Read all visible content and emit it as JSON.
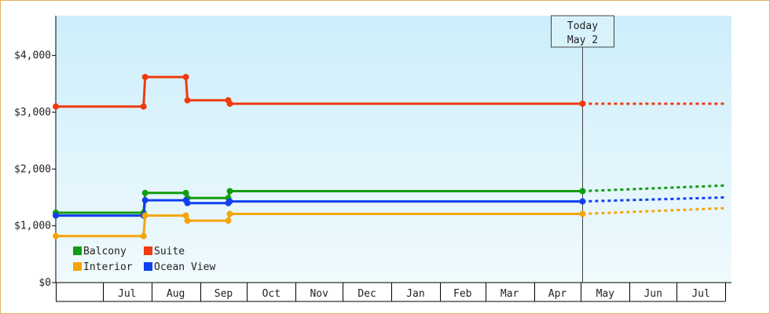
{
  "chart_data": {
    "type": "line",
    "step": true,
    "ylim": [
      0,
      4700
    ],
    "y_ticks": [
      0,
      1000,
      2000,
      3000,
      4000
    ],
    "y_tick_labels": [
      "$0",
      "$1,000",
      "$2,000",
      "$3,000",
      "$4,000"
    ],
    "x_range": [
      "2023-06-01",
      "2024-08-01"
    ],
    "x_month_bounds": [
      "2023-06-01",
      "2023-07-01",
      "2023-08-01",
      "2023-09-01",
      "2023-10-01",
      "2023-11-01",
      "2023-12-01",
      "2024-01-01",
      "2024-02-01",
      "2024-03-01",
      "2024-04-01",
      "2024-05-01",
      "2024-06-01",
      "2024-07-01",
      "2024-08-01"
    ],
    "x_tick_labels": [
      "Jul",
      "Aug",
      "Sep",
      "Oct",
      "Nov",
      "Dec",
      "Jan",
      "Feb",
      "Mar",
      "Apr",
      "May",
      "Jun",
      "Jul"
    ],
    "today": {
      "date": "2024-05-02",
      "label_line1": "Today",
      "label_line2": "May 2"
    },
    "grid": false,
    "legend_placement": "bottom-left",
    "colors": {
      "background_top": "#cdeefb",
      "background_bottom": "#f0fafd",
      "frame": "#e0b060"
    },
    "series": [
      {
        "name": "Suite",
        "color": "#f03a10",
        "points": [
          [
            "2023-06-01",
            3100
          ],
          [
            "2023-07-27",
            3100
          ],
          [
            "2023-07-28",
            3620
          ],
          [
            "2023-08-23",
            3620
          ],
          [
            "2023-08-24",
            3210
          ],
          [
            "2023-09-19",
            3210
          ],
          [
            "2023-09-20",
            3150
          ],
          [
            "2024-05-02",
            3150
          ]
        ],
        "forecast": [
          [
            "2024-05-02",
            3150
          ],
          [
            "2024-08-01",
            3150
          ]
        ]
      },
      {
        "name": "Balcony",
        "color": "#129c12",
        "points": [
          [
            "2023-06-01",
            1230
          ],
          [
            "2023-07-27",
            1230
          ],
          [
            "2023-07-28",
            1580
          ],
          [
            "2023-08-23",
            1580
          ],
          [
            "2023-08-24",
            1490
          ],
          [
            "2023-09-19",
            1490
          ],
          [
            "2023-09-20",
            1610
          ],
          [
            "2024-05-02",
            1610
          ]
        ],
        "forecast": [
          [
            "2024-05-02",
            1610
          ],
          [
            "2024-08-01",
            1710
          ]
        ]
      },
      {
        "name": "Ocean View",
        "color": "#1040f0",
        "points": [
          [
            "2023-06-01",
            1180
          ],
          [
            "2023-07-27",
            1180
          ],
          [
            "2023-07-28",
            1450
          ],
          [
            "2023-08-23",
            1450
          ],
          [
            "2023-08-24",
            1400
          ],
          [
            "2023-09-19",
            1400
          ],
          [
            "2023-09-20",
            1430
          ],
          [
            "2024-05-02",
            1430
          ]
        ],
        "forecast": [
          [
            "2024-05-02",
            1430
          ],
          [
            "2024-08-01",
            1500
          ]
        ]
      },
      {
        "name": "Interior",
        "color": "#f5a50a",
        "points": [
          [
            "2023-06-01",
            820
          ],
          [
            "2023-07-27",
            820
          ],
          [
            "2023-07-28",
            1180
          ],
          [
            "2023-08-23",
            1180
          ],
          [
            "2023-08-24",
            1090
          ],
          [
            "2023-09-19",
            1090
          ],
          [
            "2023-09-20",
            1210
          ],
          [
            "2024-05-02",
            1210
          ]
        ],
        "forecast": [
          [
            "2024-05-02",
            1210
          ],
          [
            "2024-08-01",
            1310
          ]
        ]
      }
    ],
    "legend_order": [
      "Balcony",
      "Suite",
      "Interior",
      "Ocean View"
    ]
  }
}
